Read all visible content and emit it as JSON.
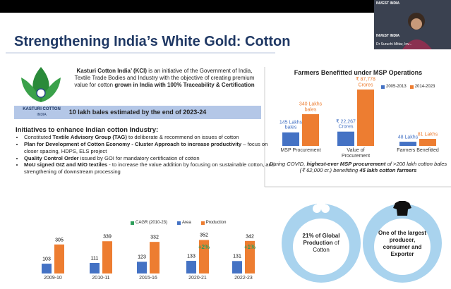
{
  "screen": {
    "logo_text": "INVEST INDIA",
    "presenter": "Dr Suruchi Mittar, Inv..."
  },
  "slide": {
    "title": "Strengthening India’s White Gold: Cotton",
    "logo": {
      "name": "KASTURI COTTON",
      "country": "INDIA"
    },
    "intro": [
      {
        "text": "Kasturi Cotton India’ (KCI)",
        "bold": true
      },
      {
        "text": " is an initiative of the Government of India, Textile Trade Bodies and Industry with the objective of creating premium value for cotton ",
        "bold": false
      },
      {
        "text": "grown in India with 100% Traceability & Certification",
        "bold": true
      }
    ],
    "banner": "10 lakh bales estimated by the end of 2023-24",
    "initiatives": {
      "heading": "Initiatives to enhance Indian cotton Industry:",
      "items": [
        [
          {
            "text": "Constituted ",
            "bold": false
          },
          {
            "text": "Textile Advisory Group (TAG)",
            "bold": true
          },
          {
            "text": " to deliberate & recommend on issues of cotton",
            "bold": false
          }
        ],
        [
          {
            "text": "Plan for Development of Cotton Economy - Cluster Approach to increase productivity",
            "bold": true
          },
          {
            "text": " – focus on closer spacing, HDPS, ELS project",
            "bold": false
          }
        ],
        [
          {
            "text": "Quality Control Order",
            "bold": true
          },
          {
            "text": " issued by GOI for mandatory certification of cotton",
            "bold": false
          }
        ],
        [
          {
            "text": "MoU signed GIZ and M/O textiles",
            "bold": true
          },
          {
            "text": " - to increase the value addition by focusing on sustainable cotton, and strengthening of downstream processing",
            "bold": false
          }
        ]
      ]
    },
    "stats": [
      [
        {
          "text": "21% of Global Production",
          "bold": true
        },
        {
          "text": " of Cotton",
          "bold": false
        }
      ],
      [
        {
          "text": "One of the largest producer, consumer and Exporter",
          "bold": true
        }
      ]
    ]
  },
  "msp_chart": {
    "type": "bar",
    "title": "Farmers Benefitted under MSP Operations",
    "categories": [
      "MSP Procurement",
      "Value of Procurement",
      "Farmers Benefitted"
    ],
    "series": [
      {
        "name": "2005-2013",
        "color": "#4472c4",
        "values": [
          145,
          22267,
          48
        ],
        "value_labels": [
          "145 Lakhs bales",
          "₹ 22,267 Crores",
          "48 Lakhs"
        ]
      },
      {
        "name": "2014-2023",
        "color": "#ed7d31",
        "values": [
          340,
          87778,
          81
        ],
        "value_labels": [
          "340 Lakhs bales",
          "₹ 87,778 Crores",
          "81 Lakhs"
        ]
      }
    ],
    "note": [
      {
        "text": "During COVID, ",
        "bold": false
      },
      {
        "text": "highest-ever MSP procurement",
        "bold": true
      },
      {
        "text": " of >200 lakh cotton bales (₹ 62,000 cr.) benefitting ",
        "bold": false
      },
      {
        "text": "45 lakh cotton farmers",
        "bold": true
      }
    ]
  },
  "cotton_chart": {
    "type": "bar",
    "categories": [
      "2009-10",
      "2010-11",
      "2015-16",
      "2020-21",
      "2022-23"
    ],
    "ylim": [
      0,
      400
    ],
    "series": [
      {
        "name": "CAGR (2010-23)",
        "color": "#2e9e5b",
        "values": [
          null,
          null,
          null,
          2,
          1
        ],
        "value_labels": [
          null,
          null,
          null,
          "+2%",
          "+1%"
        ]
      },
      {
        "name": "Area",
        "color": "#4472c4",
        "values": [
          103,
          111,
          123,
          133,
          131
        ]
      },
      {
        "name": "Production",
        "color": "#ed7d31",
        "values": [
          305,
          339,
          332,
          352,
          342
        ]
      }
    ]
  }
}
